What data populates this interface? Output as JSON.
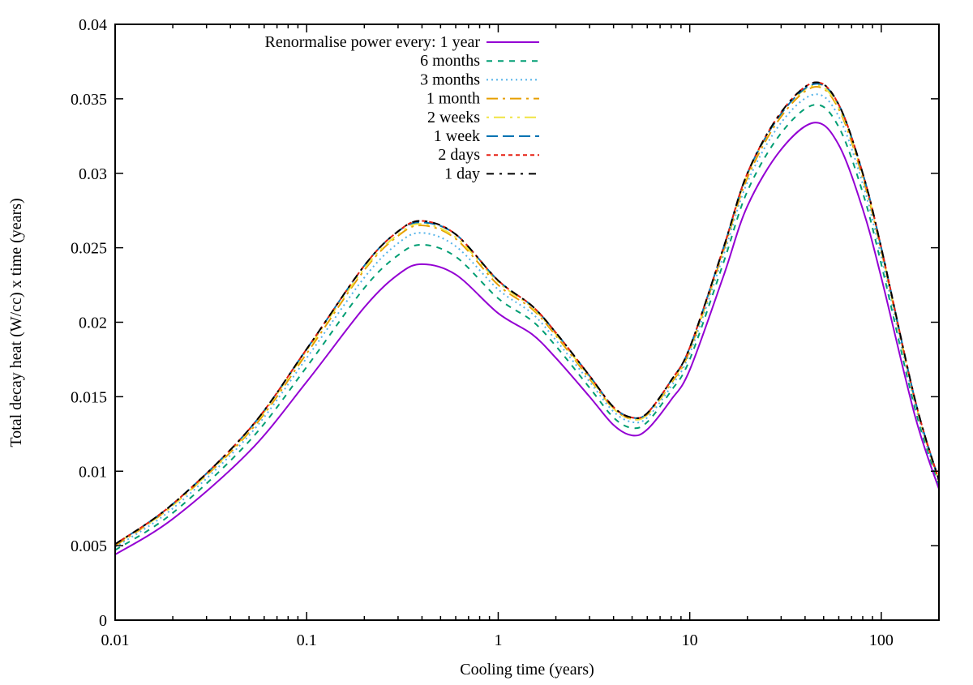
{
  "chart_data": {
    "type": "line",
    "title": "",
    "xlabel": "Cooling time (years)",
    "ylabel": "Total decay heat (W/cc) x time (years)",
    "xscale": "log",
    "xlim": [
      0.01,
      200
    ],
    "ylim": [
      0,
      0.04
    ],
    "grid": false,
    "legend_placement": "top-left",
    "legend_title": "Renormalise power every:",
    "x_ticks": [
      0.01,
      0.1,
      1,
      10,
      100
    ],
    "x_tick_labels": [
      "0.01",
      "0.1",
      "1",
      "10",
      "100"
    ],
    "y_ticks": [
      0,
      0.005,
      0.01,
      0.015,
      0.02,
      0.025,
      0.03,
      0.035,
      0.04
    ],
    "y_tick_labels": [
      "0",
      "0.005",
      "0.01",
      "0.015",
      "0.02",
      "0.025",
      "0.03",
      "0.035",
      "0.04"
    ],
    "x": [
      0.01,
      0.02,
      0.05,
      0.1,
      0.2,
      0.3,
      0.4,
      0.6,
      1,
      1.5,
      2,
      3,
      4,
      5,
      6,
      8,
      10,
      15,
      20,
      30,
      45,
      60,
      80,
      100,
      150,
      200
    ],
    "series": [
      {
        "name": "1 year",
        "color": "#9400d3",
        "style": "solid",
        "values": [
          0.0044,
          0.0068,
          0.0113,
          0.016,
          0.021,
          0.0232,
          0.0239,
          0.0232,
          0.0206,
          0.0192,
          0.0176,
          0.015,
          0.0131,
          0.0124,
          0.0128,
          0.0148,
          0.0168,
          0.0231,
          0.0278,
          0.0316,
          0.0334,
          0.0319,
          0.0276,
          0.023,
          0.0137,
          0.0088
        ]
      },
      {
        "name": "6 months",
        "color": "#009e73",
        "style": "dashed",
        "values": [
          0.0047,
          0.0072,
          0.012,
          0.017,
          0.0223,
          0.0245,
          0.0252,
          0.0244,
          0.0216,
          0.0201,
          0.0184,
          0.0156,
          0.0136,
          0.0129,
          0.0133,
          0.0154,
          0.0175,
          0.024,
          0.0288,
          0.0327,
          0.0346,
          0.0331,
          0.0287,
          0.0239,
          0.0142,
          0.0091
        ]
      },
      {
        "name": "3 months",
        "color": "#56b4e9",
        "style": "dotted",
        "values": [
          0.0049,
          0.0075,
          0.0124,
          0.0176,
          0.023,
          0.0253,
          0.026,
          0.0251,
          0.0222,
          0.0206,
          0.0188,
          0.016,
          0.014,
          0.0133,
          0.0136,
          0.0157,
          0.0179,
          0.0245,
          0.0294,
          0.0334,
          0.0353,
          0.0338,
          0.0293,
          0.0244,
          0.0145,
          0.0092
        ]
      },
      {
        "name": "1 month",
        "color": "#e69f00",
        "style": "dash-dot",
        "values": [
          0.005,
          0.0077,
          0.0126,
          0.0179,
          0.0235,
          0.0258,
          0.0265,
          0.0256,
          0.0225,
          0.0209,
          0.0191,
          0.0162,
          0.0142,
          0.0135,
          0.0138,
          0.0159,
          0.0181,
          0.0248,
          0.0297,
          0.0338,
          0.0358,
          0.0343,
          0.0297,
          0.0248,
          0.0147,
          0.0093
        ]
      },
      {
        "name": "2 weeks",
        "color": "#f0e442",
        "style": "dash-dot-dot",
        "values": [
          0.0051,
          0.0077,
          0.0127,
          0.0181,
          0.0236,
          0.0259,
          0.0266,
          0.0257,
          0.0227,
          0.021,
          0.0192,
          0.0163,
          0.0142,
          0.0135,
          0.0138,
          0.016,
          0.0182,
          0.0249,
          0.0299,
          0.034,
          0.0359,
          0.0344,
          0.0299,
          0.0249,
          0.0147,
          0.0094
        ]
      },
      {
        "name": "1 week",
        "color": "#0072b2",
        "style": "long-dash",
        "values": [
          0.0051,
          0.0078,
          0.0128,
          0.0182,
          0.0238,
          0.0261,
          0.0267,
          0.0259,
          0.0228,
          0.0211,
          0.0193,
          0.0164,
          0.0143,
          0.0136,
          0.0139,
          0.0161,
          0.0183,
          0.025,
          0.03,
          0.034,
          0.036,
          0.0346,
          0.03,
          0.025,
          0.0148,
          0.0094
        ]
      },
      {
        "name": "2 days",
        "color": "#e51e10",
        "style": "short-dash",
        "values": [
          0.0051,
          0.0078,
          0.0128,
          0.0182,
          0.0238,
          0.0261,
          0.0268,
          0.0259,
          0.0228,
          0.0211,
          0.0193,
          0.0164,
          0.0143,
          0.0136,
          0.0139,
          0.0161,
          0.0183,
          0.025,
          0.03,
          0.0341,
          0.0361,
          0.0346,
          0.03,
          0.025,
          0.0148,
          0.0094
        ]
      },
      {
        "name": "1 day",
        "color": "#000000",
        "style": "dash-dot-long",
        "values": [
          0.0051,
          0.0078,
          0.0128,
          0.0182,
          0.0238,
          0.0261,
          0.0268,
          0.0259,
          0.0228,
          0.0211,
          0.0193,
          0.0164,
          0.0143,
          0.0136,
          0.0139,
          0.0161,
          0.0183,
          0.025,
          0.03,
          0.0341,
          0.0361,
          0.0346,
          0.03,
          0.025,
          0.0148,
          0.0094
        ]
      }
    ]
  }
}
